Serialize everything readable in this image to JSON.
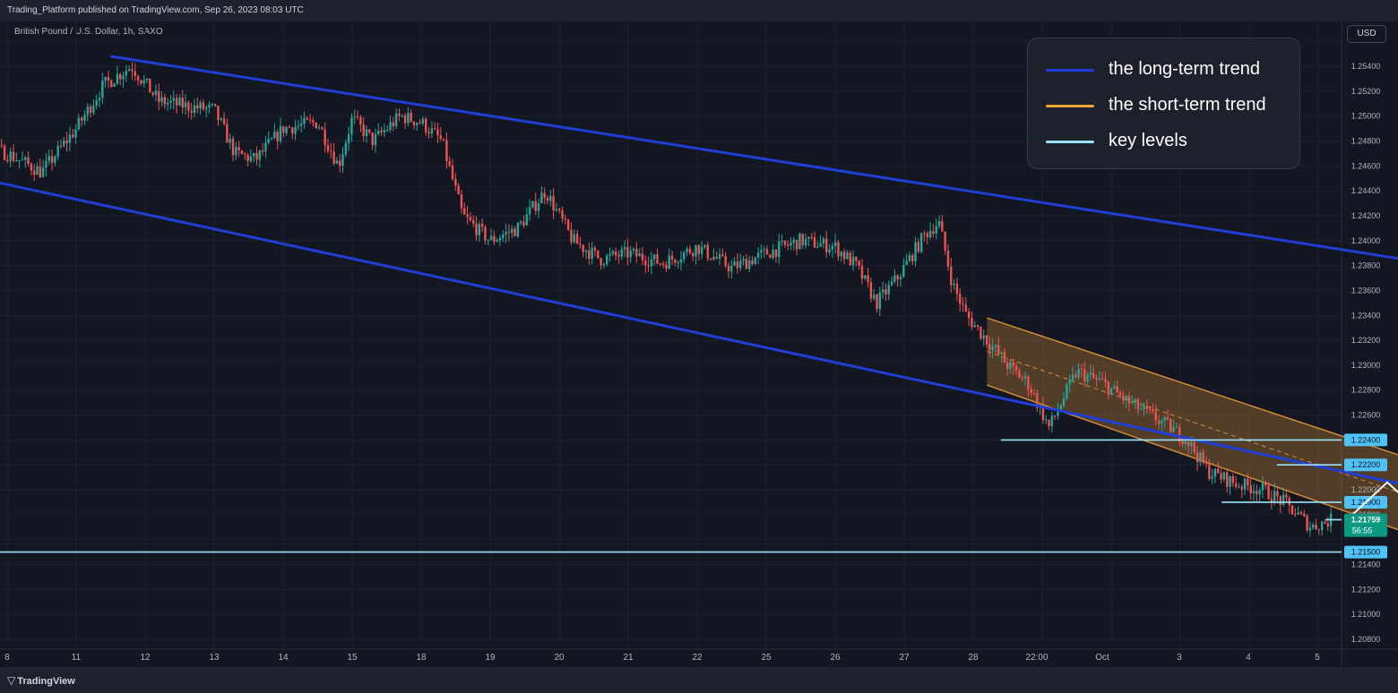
{
  "header": {
    "publish_info": "Trading_Platform published on TradingView.com, Sep 26, 2023 08:03 UTC",
    "symbol": "British Pound / U.S. Dollar, 1h, SAXO",
    "currency_button": "USD",
    "brand": "TradingView"
  },
  "legend": [
    {
      "label": "the long-term trend",
      "color": "#1f3fd6"
    },
    {
      "label": "the short-term trend",
      "color": "#f7a23a"
    },
    {
      "label": "key levels",
      "color": "#9be3ff"
    }
  ],
  "chart_data": {
    "type": "candlestick",
    "title": "",
    "ylim": [
      1.2075,
      1.2558
    ],
    "y_ticks": [
      "1.25400",
      "1.25200",
      "1.25000",
      "1.24800",
      "1.24600",
      "1.24400",
      "1.24200",
      "1.24000",
      "1.23800",
      "1.23600",
      "1.23400",
      "1.23200",
      "1.23000",
      "1.22800",
      "1.22600",
      "1.22000",
      "1.21800",
      "1.21400",
      "1.21200",
      "1.21000",
      "1.20800"
    ],
    "x_ticks": [
      "8",
      "11",
      "12",
      "13",
      "14",
      "15",
      "18",
      "19",
      "20",
      "21",
      "22",
      "25",
      "26",
      "27",
      "28",
      "22:00",
      "Oct",
      "3",
      "4",
      "5"
    ],
    "price_path": [
      {
        "x": 8.5,
        "y": 1.249
      },
      {
        "x": 9.0,
        "y": 1.2502
      },
      {
        "x": 9.5,
        "y": 1.2478
      },
      {
        "x": 10.0,
        "y": 1.247
      },
      {
        "x": 10.5,
        "y": 1.2455
      },
      {
        "x": 11.0,
        "y": 1.249
      },
      {
        "x": 11.4,
        "y": 1.2525
      },
      {
        "x": 11.8,
        "y": 1.254
      },
      {
        "x": 12.2,
        "y": 1.2512
      },
      {
        "x": 12.6,
        "y": 1.2508
      },
      {
        "x": 13.0,
        "y": 1.2505
      },
      {
        "x": 13.3,
        "y": 1.247
      },
      {
        "x": 13.6,
        "y": 1.2465
      },
      {
        "x": 14.0,
        "y": 1.249
      },
      {
        "x": 14.5,
        "y": 1.2495
      },
      {
        "x": 14.8,
        "y": 1.246
      },
      {
        "x": 15.0,
        "y": 1.2498
      },
      {
        "x": 15.3,
        "y": 1.248
      },
      {
        "x": 15.7,
        "y": 1.25
      },
      {
        "x": 16.0,
        "y": 1.2495
      },
      {
        "x": 16.3,
        "y": 1.248
      },
      {
        "x": 16.6,
        "y": 1.242
      },
      {
        "x": 17.0,
        "y": 1.24
      },
      {
        "x": 17.4,
        "y": 1.241
      },
      {
        "x": 17.8,
        "y": 1.244
      },
      {
        "x": 18.2,
        "y": 1.24
      },
      {
        "x": 18.6,
        "y": 1.2385
      },
      {
        "x": 19.0,
        "y": 1.239
      },
      {
        "x": 19.5,
        "y": 1.2382
      },
      {
        "x": 20.0,
        "y": 1.2395
      },
      {
        "x": 20.5,
        "y": 1.2378
      },
      {
        "x": 21.0,
        "y": 1.239
      },
      {
        "x": 21.5,
        "y": 1.24
      },
      {
        "x": 22.0,
        "y": 1.2395
      },
      {
        "x": 22.3,
        "y": 1.238
      },
      {
        "x": 22.6,
        "y": 1.235
      },
      {
        "x": 22.9,
        "y": 1.237
      },
      {
        "x": 23.3,
        "y": 1.2405
      },
      {
        "x": 23.5,
        "y": 1.2415
      },
      {
        "x": 23.7,
        "y": 1.2365
      },
      {
        "x": 23.9,
        "y": 1.234
      },
      {
        "x": 24.2,
        "y": 1.232
      },
      {
        "x": 24.5,
        "y": 1.23
      },
      {
        "x": 24.8,
        "y": 1.2285
      },
      {
        "x": 25.1,
        "y": 1.225
      },
      {
        "x": 25.5,
        "y": 1.2295
      },
      {
        "x": 25.9,
        "y": 1.2285
      },
      {
        "x": 26.2,
        "y": 1.2272
      },
      {
        "x": 26.5,
        "y": 1.2262
      },
      {
        "x": 26.8,
        "y": 1.2252
      },
      {
        "x": 27.1,
        "y": 1.224
      },
      {
        "x": 27.4,
        "y": 1.2215
      },
      {
        "x": 27.8,
        "y": 1.2205
      },
      {
        "x": 28.2,
        "y": 1.22
      },
      {
        "x": 28.5,
        "y": 1.219
      },
      {
        "x": 28.9,
        "y": 1.217
      },
      {
        "x": 29.2,
        "y": 1.2176
      }
    ],
    "annotations": {
      "long_term_channel_upper": [
        {
          "x": 11.5,
          "y": 1.2548
        },
        {
          "x": 38.4,
          "y": 1.2314
        }
      ],
      "long_term_channel_lower": [
        {
          "x": 9.5,
          "y": 1.2451
        },
        {
          "x": 38.4,
          "y": 1.2107
        }
      ],
      "short_term_channel_top": [
        {
          "x": 24.2,
          "y": 1.2338
        },
        {
          "x": 31.9,
          "y": 1.2196
        }
      ],
      "short_term_channel_bottom": [
        {
          "x": 24.2,
          "y": 1.2284
        },
        {
          "x": 31.9,
          "y": 1.2134
        }
      ],
      "key_levels": [
        {
          "label": "1.22400",
          "value": 1.224
        },
        {
          "label": "1.22200",
          "value": 1.222
        },
        {
          "label": "1.21900",
          "value": 1.219
        },
        {
          "label": "1.21700",
          "value": 1.217
        },
        {
          "label": "1.21500",
          "value": 1.215
        }
      ],
      "projection_path": [
        {
          "x": 29.4,
          "y": 1.2175
        },
        {
          "x": 30.0,
          "y": 1.2206
        },
        {
          "x": 30.5,
          "y": 1.2181
        },
        {
          "x": 31.4,
          "y": 1.2219
        },
        {
          "x": 32.1,
          "y": 1.2189
        }
      ]
    },
    "last_price": {
      "label": "1.21759",
      "countdown": "56:55",
      "value": 1.21759
    }
  }
}
